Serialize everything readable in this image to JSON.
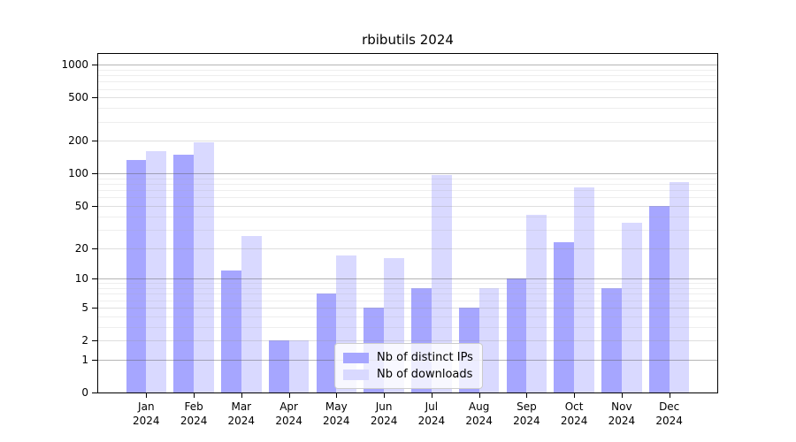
{
  "title": "rbibutils 2024",
  "chart_data": {
    "type": "bar",
    "title": "rbibutils 2024",
    "categories": [
      "Jan",
      "Feb",
      "Mar",
      "Apr",
      "May",
      "Jun",
      "Jul",
      "Aug",
      "Sep",
      "Oct",
      "Nov",
      "Dec"
    ],
    "x_tick_year": "2024",
    "series": [
      {
        "key": "distinct-ips",
        "name": "Nb of distinct IPs",
        "color": "#a6a6ff",
        "values": [
          133,
          150,
          12,
          2,
          7,
          5,
          8,
          5,
          10,
          23,
          8,
          50
        ]
      },
      {
        "key": "downloads",
        "name": "Nb of downloads",
        "color": "#d9d9ff",
        "values": [
          160,
          196,
          26,
          2,
          17,
          16,
          97,
          8,
          41,
          74,
          35,
          83
        ]
      }
    ],
    "xlabel": "",
    "ylabel": "",
    "y_scale": "log1p",
    "y_ticks": [
      0,
      1,
      2,
      5,
      10,
      20,
      50,
      100,
      200,
      500,
      1000
    ],
    "y_minor_ticks": [
      3,
      4,
      6,
      7,
      8,
      9,
      30,
      40,
      60,
      70,
      80,
      90,
      300,
      400,
      600,
      700,
      800,
      900
    ],
    "grid": "horizontal",
    "legend_position": "bottom-center",
    "axis_color": "#000000",
    "background_color": "#ffffff"
  }
}
